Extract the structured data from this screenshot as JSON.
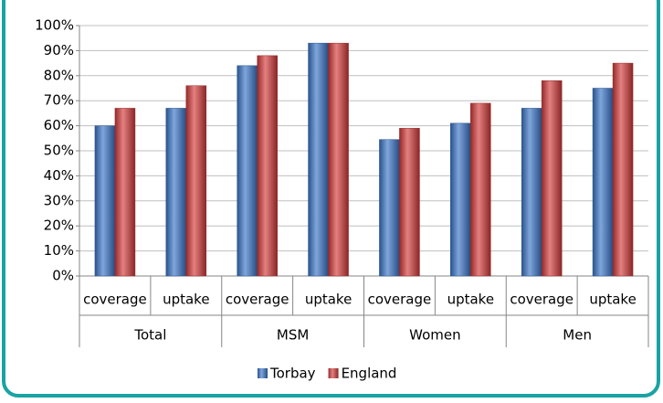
{
  "chart_data": {
    "type": "bar",
    "categories": [
      "coverage",
      "uptake",
      "coverage",
      "uptake",
      "coverage",
      "uptake",
      "coverage",
      "uptake"
    ],
    "groups": [
      "Total",
      "MSM",
      "Women",
      "Men"
    ],
    "series": [
      {
        "name": "Torbay",
        "color": "#3a76c9",
        "values": [
          60,
          67,
          84,
          93,
          54.5,
          61,
          67,
          75
        ]
      },
      {
        "name": "England",
        "color": "#d63b3b",
        "values": [
          67,
          76,
          88,
          93,
          59,
          69,
          78,
          85
        ]
      }
    ],
    "ylim": [
      0,
      100
    ],
    "yticks": [
      {
        "value": 0,
        "label": "0%"
      },
      {
        "value": 10,
        "label": "10%"
      },
      {
        "value": 20,
        "label": "20%"
      },
      {
        "value": 30,
        "label": "30%"
      },
      {
        "value": 40,
        "label": "40%"
      },
      {
        "value": 50,
        "label": "50%"
      },
      {
        "value": 60,
        "label": "60%"
      },
      {
        "value": 70,
        "label": "70%"
      },
      {
        "value": 80,
        "label": "80%"
      },
      {
        "value": 90,
        "label": "90%"
      },
      {
        "value": 100,
        "label": "100%"
      }
    ],
    "grid": true,
    "legend": "bottom"
  }
}
